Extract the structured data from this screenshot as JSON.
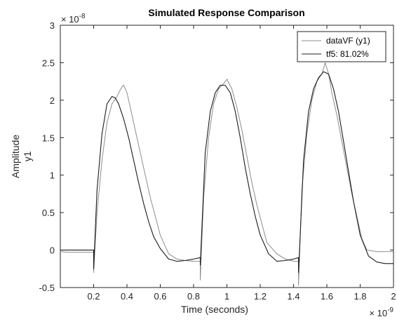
{
  "chart_data": {
    "type": "line",
    "title": "Simulated Response Comparison",
    "xlabel": "Time (seconds)",
    "ylabel": "Amplitude",
    "ylabel2": "y1",
    "x_exponent_label": "× 10^-9",
    "y_exponent_label": "× 10^-8",
    "x_exponent": {
      "base": "× 10",
      "power": "-9"
    },
    "y_exponent": {
      "base": "× 10",
      "power": "-8"
    },
    "xlim": [
      0,
      2
    ],
    "ylim": [
      -0.5,
      3
    ],
    "x_tick_values": [
      0.2,
      0.4,
      0.6,
      0.8,
      1,
      1.2,
      1.4,
      1.6,
      1.8,
      2
    ],
    "x_tick_labels": [
      "0.2",
      "0.4",
      "0.6",
      "0.8",
      "1",
      "1.2",
      "1.4",
      "1.6",
      "1.8",
      "2"
    ],
    "y_tick_values": [
      -0.5,
      0,
      0.5,
      1,
      1.5,
      2,
      2.5,
      3
    ],
    "y_tick_labels": [
      "-0.5",
      "0",
      "0.5",
      "1",
      "1.5",
      "2",
      "2.5",
      "3"
    ],
    "grid": false,
    "legend_position": "top-right",
    "colors": {
      "dataVF": "#8c8c8c",
      "tf5": "#1c1c1c",
      "axes": "#262626"
    },
    "series": [
      {
        "name": "dataVF (y1)",
        "x": [
          0,
          0.05,
          0.1,
          0.15,
          0.2,
          0.2,
          0.22,
          0.25,
          0.28,
          0.31,
          0.34,
          0.37,
          0.38,
          0.4,
          0.42,
          0.45,
          0.48,
          0.51,
          0.54,
          0.57,
          0.6,
          0.63,
          0.65,
          0.7,
          0.75,
          0.8,
          0.84,
          0.84,
          0.86,
          0.89,
          0.92,
          0.95,
          0.98,
          1.0,
          1.03,
          1.06,
          1.09,
          1.12,
          1.15,
          1.18,
          1.21,
          1.24,
          1.3,
          1.35,
          1.4,
          1.43,
          1.43,
          1.45,
          1.48,
          1.51,
          1.54,
          1.57,
          1.59,
          1.61,
          1.63,
          1.66,
          1.69,
          1.72,
          1.75,
          1.78,
          1.81,
          1.84,
          1.9,
          1.95,
          2.0
        ],
        "y": [
          -0.02,
          -0.03,
          -0.03,
          -0.03,
          -0.03,
          -0.3,
          0.5,
          1.2,
          1.7,
          1.95,
          2.05,
          2.18,
          2.2,
          2.1,
          1.9,
          1.6,
          1.3,
          1.0,
          0.7,
          0.45,
          0.2,
          0.05,
          -0.05,
          -0.12,
          -0.14,
          -0.15,
          -0.15,
          -0.4,
          0.7,
          1.5,
          1.95,
          2.15,
          2.22,
          2.28,
          2.15,
          1.9,
          1.6,
          1.25,
          0.9,
          0.6,
          0.35,
          0.1,
          -0.05,
          -0.12,
          -0.15,
          -0.15,
          -0.47,
          0.8,
          1.55,
          2.0,
          2.25,
          2.35,
          2.5,
          2.35,
          2.1,
          1.8,
          1.45,
          1.1,
          0.75,
          0.45,
          0.15,
          0.0,
          -0.02,
          -0.02,
          -0.02
        ]
      },
      {
        "name": "tf5: 81.02%",
        "x": [
          0,
          0.05,
          0.1,
          0.15,
          0.2,
          0.2,
          0.22,
          0.25,
          0.28,
          0.31,
          0.33,
          0.35,
          0.38,
          0.41,
          0.44,
          0.47,
          0.5,
          0.53,
          0.56,
          0.6,
          0.65,
          0.7,
          0.75,
          0.8,
          0.84,
          0.84,
          0.87,
          0.9,
          0.93,
          0.96,
          0.99,
          1.02,
          1.05,
          1.08,
          1.11,
          1.14,
          1.17,
          1.2,
          1.25,
          1.3,
          1.35,
          1.4,
          1.43,
          1.43,
          1.46,
          1.49,
          1.52,
          1.55,
          1.58,
          1.61,
          1.64,
          1.67,
          1.7,
          1.73,
          1.76,
          1.8,
          1.85,
          1.9,
          1.95,
          2.0
        ],
        "y": [
          0,
          0,
          0,
          0,
          0,
          -0.25,
          0.8,
          1.55,
          1.95,
          2.05,
          2.03,
          1.95,
          1.75,
          1.5,
          1.2,
          0.9,
          0.62,
          0.38,
          0.18,
          0.02,
          -0.12,
          -0.15,
          -0.14,
          -0.12,
          -0.1,
          -0.2,
          1.3,
          1.85,
          2.1,
          2.2,
          2.2,
          2.1,
          1.85,
          1.5,
          1.1,
          0.75,
          0.45,
          0.2,
          -0.05,
          -0.15,
          -0.14,
          -0.12,
          -0.1,
          -0.3,
          1.2,
          1.85,
          2.15,
          2.3,
          2.38,
          2.35,
          2.15,
          1.85,
          1.45,
          1.05,
          0.65,
          0.2,
          -0.08,
          -0.16,
          -0.18,
          -0.18
        ]
      }
    ]
  }
}
